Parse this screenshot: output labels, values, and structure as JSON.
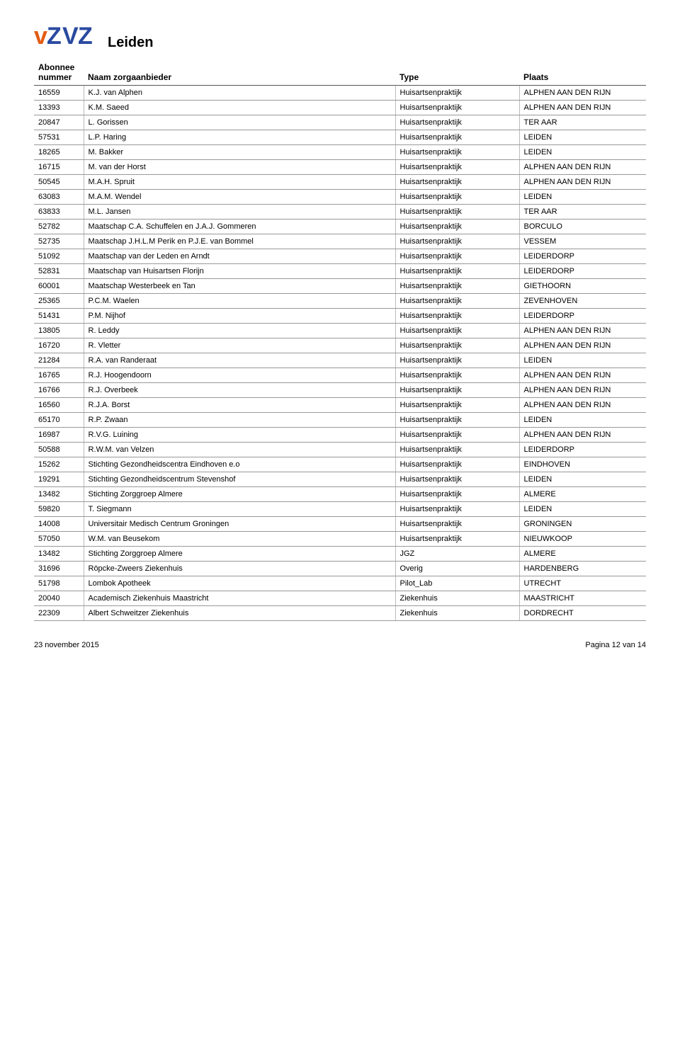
{
  "page_title": "Leiden",
  "footer_left": "23 november 2015",
  "footer_right": "Pagina 12 van 14",
  "logo": {
    "colors": {
      "orange": "#e35c13",
      "blue": "#2a4aa0"
    }
  },
  "table": {
    "columns": [
      {
        "key": "abonnee",
        "label": "Abonnee nummer"
      },
      {
        "key": "naam",
        "label": "Naam zorgaanbieder"
      },
      {
        "key": "type",
        "label": "Type"
      },
      {
        "key": "plaats",
        "label": "Plaats"
      }
    ],
    "rows": [
      [
        "16559",
        "K.J. van Alphen",
        "Huisartsenpraktijk",
        "ALPHEN AAN DEN RIJN"
      ],
      [
        "13393",
        "K.M. Saeed",
        "Huisartsenpraktijk",
        "ALPHEN AAN DEN RIJN"
      ],
      [
        "20847",
        "L. Gorissen",
        "Huisartsenpraktijk",
        "TER AAR"
      ],
      [
        "57531",
        "L.P. Haring",
        "Huisartsenpraktijk",
        "LEIDEN"
      ],
      [
        "18265",
        "M. Bakker",
        "Huisartsenpraktijk",
        "LEIDEN"
      ],
      [
        "16715",
        "M. van der Horst",
        "Huisartsenpraktijk",
        "ALPHEN AAN DEN RIJN"
      ],
      [
        "50545",
        "M.A.H. Spruit",
        "Huisartsenpraktijk",
        "ALPHEN AAN DEN RIJN"
      ],
      [
        "63083",
        "M.A.M. Wendel",
        "Huisartsenpraktijk",
        "LEIDEN"
      ],
      [
        "63833",
        "M.L. Jansen",
        "Huisartsenpraktijk",
        "TER AAR"
      ],
      [
        "52782",
        "Maatschap C.A. Schuffelen en J.A.J. Gommeren",
        "Huisartsenpraktijk",
        "BORCULO"
      ],
      [
        "52735",
        "Maatschap J.H.L.M Perik en P.J.E. van Bommel",
        "Huisartsenpraktijk",
        "VESSEM"
      ],
      [
        "51092",
        "Maatschap van der Leden en Arndt",
        "Huisartsenpraktijk",
        "LEIDERDORP"
      ],
      [
        "52831",
        "Maatschap van Huisartsen Florijn",
        "Huisartsenpraktijk",
        "LEIDERDORP"
      ],
      [
        "60001",
        "Maatschap Westerbeek en Tan",
        "Huisartsenpraktijk",
        "GIETHOORN"
      ],
      [
        "25365",
        "P.C.M. Waelen",
        "Huisartsenpraktijk",
        "ZEVENHOVEN"
      ],
      [
        "51431",
        "P.M. Nijhof",
        "Huisartsenpraktijk",
        "LEIDERDORP"
      ],
      [
        "13805",
        "R. Leddy",
        "Huisartsenpraktijk",
        "ALPHEN AAN DEN RIJN"
      ],
      [
        "16720",
        "R. Vletter",
        "Huisartsenpraktijk",
        "ALPHEN AAN DEN RIJN"
      ],
      [
        "21284",
        "R.A. van Randeraat",
        "Huisartsenpraktijk",
        "LEIDEN"
      ],
      [
        "16765",
        "R.J. Hoogendoorn",
        "Huisartsenpraktijk",
        "ALPHEN AAN DEN RIJN"
      ],
      [
        "16766",
        "R.J. Overbeek",
        "Huisartsenpraktijk",
        "ALPHEN AAN DEN RIJN"
      ],
      [
        "16560",
        "R.J.A. Borst",
        "Huisartsenpraktijk",
        "ALPHEN AAN DEN RIJN"
      ],
      [
        "65170",
        "R.P. Zwaan",
        "Huisartsenpraktijk",
        "LEIDEN"
      ],
      [
        "16987",
        "R.V.G. Luining",
        "Huisartsenpraktijk",
        "ALPHEN AAN DEN RIJN"
      ],
      [
        "50588",
        "R.W.M. van Velzen",
        "Huisartsenpraktijk",
        "LEIDERDORP"
      ],
      [
        "15262",
        "Stichting Gezondheidscentra Eindhoven e.o",
        "Huisartsenpraktijk",
        "EINDHOVEN"
      ],
      [
        "19291",
        "Stichting Gezondheidscentrum Stevenshof",
        "Huisartsenpraktijk",
        "LEIDEN"
      ],
      [
        "13482",
        "Stichting Zorggroep Almere",
        "Huisartsenpraktijk",
        "ALMERE"
      ],
      [
        "59820",
        "T. Siegmann",
        "Huisartsenpraktijk",
        "LEIDEN"
      ],
      [
        "14008",
        "Universitair Medisch Centrum Groningen",
        "Huisartsenpraktijk",
        "GRONINGEN"
      ],
      [
        "57050",
        "W.M. van Beusekom",
        "Huisartsenpraktijk",
        "NIEUWKOOP"
      ],
      [
        "13482",
        "Stichting Zorggroep Almere",
        "JGZ",
        "ALMERE"
      ],
      [
        "31696",
        "Röpcke-Zweers Ziekenhuis",
        "Overig",
        "HARDENBERG"
      ],
      [
        "51798",
        "Lombok Apotheek",
        "Pilot_Lab",
        "UTRECHT"
      ],
      [
        "20040",
        "Academisch Ziekenhuis Maastricht",
        "Ziekenhuis",
        "MAASTRICHT"
      ],
      [
        "22309",
        "Albert Schweitzer Ziekenhuis",
        "Ziekenhuis",
        "DORDRECHT"
      ]
    ]
  }
}
